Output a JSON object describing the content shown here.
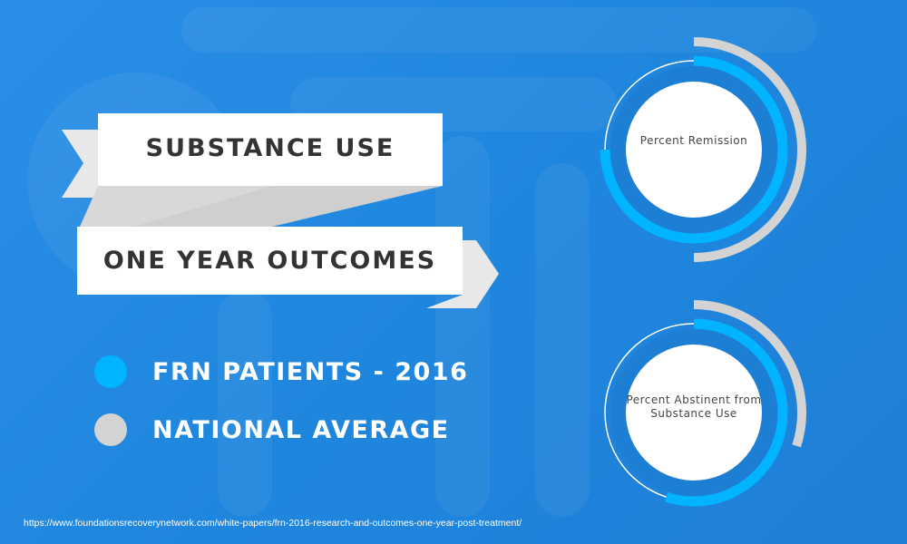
{
  "title_line1": "SUBSTANCE USE",
  "title_line2": "ONE YEAR OUTCOMES",
  "legend": [
    {
      "label": "FRN PATIENTS - 2016",
      "color": "#00b4ff"
    },
    {
      "label": "NATIONAL AVERAGE",
      "color": "#d3d3d3"
    }
  ],
  "source": "https://www.foundationsrecoverynetwork.com/white-papers/frn-2016-research-and-outcomes-one-year-post-treatment/",
  "chart_data": [
    {
      "type": "radial-bar",
      "center_label": "Percent Remission",
      "series": [
        {
          "name": "FRN PATIENTS - 2016",
          "value": 75,
          "color": "#00b4ff"
        },
        {
          "name": "NATIONAL AVERAGE",
          "value": 50,
          "color": "#d3d3d3"
        }
      ],
      "unit": "%",
      "range": [
        0,
        100
      ]
    },
    {
      "type": "radial-bar",
      "center_label": "Percent Abstinent from Substance Use",
      "series": [
        {
          "name": "FRN PATIENTS - 2016",
          "value": 55,
          "color": "#00b4ff"
        },
        {
          "name": "NATIONAL AVERAGE",
          "value": 30,
          "color": "#d3d3d3"
        }
      ],
      "unit": "%",
      "range": [
        0,
        100
      ]
    }
  ]
}
